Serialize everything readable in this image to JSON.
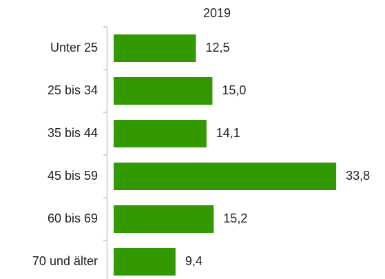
{
  "chart_data": {
    "type": "bar",
    "orientation": "horizontal",
    "title": "2019",
    "categories": [
      "Unter 25",
      "25 bis 34",
      "35 bis 44",
      "45 bis 59",
      "60 bis 69",
      "70 und älter"
    ],
    "values": [
      12.5,
      15.0,
      14.1,
      33.8,
      15.2,
      9.4
    ],
    "value_labels": [
      "12,5",
      "15,0",
      "14,1",
      "33,8",
      "15,2",
      "9,4"
    ],
    "color": "#339900"
  }
}
